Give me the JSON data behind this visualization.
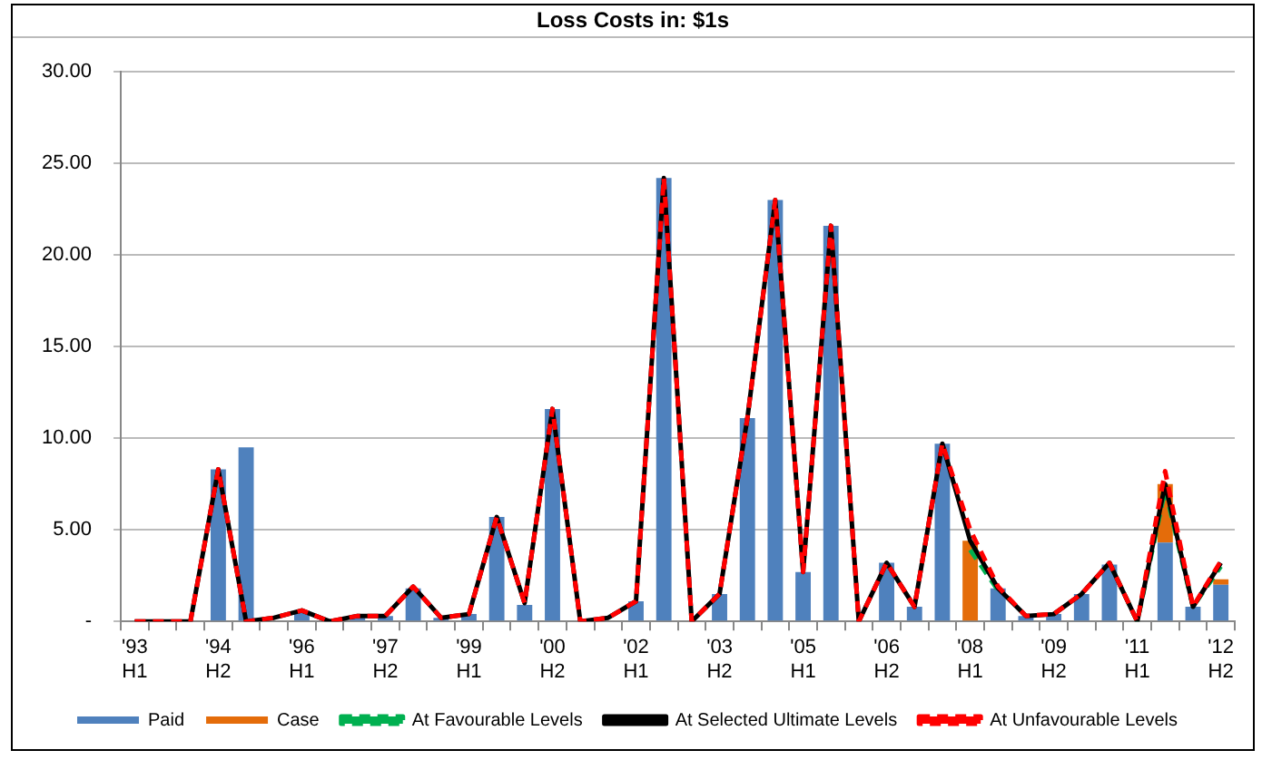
{
  "chart_data": {
    "type": "bar",
    "title": "Loss Costs in: $1s",
    "stacked": true,
    "grid": "y",
    "legend": "bottom",
    "marker": "none",
    "categories": [
      "'93 H1",
      null,
      null,
      "'94 H2",
      null,
      null,
      "'96 H1",
      null,
      null,
      "'97 H2",
      null,
      null,
      "'99 H1",
      null,
      null,
      "'00 H2",
      null,
      null,
      "'02 H1",
      null,
      null,
      "'03 H2",
      null,
      null,
      "'05 H1",
      null,
      null,
      "'06 H2",
      null,
      null,
      "'08 H1",
      null,
      null,
      "'09 H2",
      null,
      null,
      "'11 H1",
      null,
      null,
      "'12 H2"
    ],
    "ylim": [
      0,
      30
    ],
    "yticks": [
      {
        "value": 0,
        "label": "-"
      },
      {
        "value": 5,
        "label": "5.00"
      },
      {
        "value": 10,
        "label": "10.00"
      },
      {
        "value": 15,
        "label": "15.00"
      },
      {
        "value": 20,
        "label": "20.00"
      },
      {
        "value": 25,
        "label": "25.00"
      },
      {
        "value": 30,
        "label": "30.00"
      }
    ],
    "series": [
      {
        "name": "Paid",
        "color": "#4f81bd",
        "values": [
          0,
          0,
          0,
          8.3,
          9.5,
          null,
          0.6,
          0,
          0.2,
          0.3,
          1.8,
          0.2,
          0.4,
          5.7,
          0.9,
          11.6,
          0,
          null,
          1.1,
          24.2,
          0,
          1.5,
          11.1,
          23,
          2.7,
          21.6,
          0,
          3.2,
          0.8,
          9.7,
          0,
          1.8,
          0.3,
          0.4,
          1.5,
          3.1,
          0,
          4.3,
          0.8,
          2.0
        ]
      },
      {
        "name": "Case",
        "color": "#e46c0a",
        "values": [
          0,
          0,
          0,
          0,
          0,
          0,
          0,
          0,
          0,
          0,
          0,
          0,
          0,
          0,
          0,
          0,
          0,
          0,
          0,
          0,
          0,
          0,
          0,
          0,
          0,
          0,
          0,
          0,
          0,
          0,
          4.4,
          0,
          0,
          0,
          0,
          0,
          0,
          3.2,
          0,
          0.3
        ]
      },
      {
        "name": "At Favourable Levels",
        "type": "line",
        "line_style": "dashed",
        "color": "#00b050",
        "values": [
          null,
          null,
          null,
          null,
          null,
          null,
          null,
          null,
          null,
          null,
          null,
          null,
          null,
          null,
          null,
          null,
          null,
          null,
          null,
          null,
          null,
          null,
          null,
          null,
          null,
          null,
          null,
          null,
          null,
          null,
          3.9,
          1.7,
          null,
          null,
          null,
          3.2,
          0,
          7.2,
          0.8,
          3.0
        ]
      },
      {
        "name": "At Selected Ultimate Levels",
        "type": "line",
        "line_style": "solid",
        "color": "#000000",
        "values": [
          0,
          0,
          0,
          8.3,
          0,
          0.2,
          0.6,
          0,
          0.3,
          0.3,
          1.9,
          0.2,
          0.4,
          5.7,
          1.0,
          11.6,
          0,
          0.2,
          1.1,
          24.2,
          0,
          1.5,
          11.1,
          23,
          2.7,
          21.6,
          0,
          3.2,
          0.8,
          9.7,
          4.4,
          1.8,
          0.3,
          0.4,
          1.5,
          3.2,
          0,
          7.5,
          0.8,
          3.2
        ]
      },
      {
        "name": "At Unfavourable Levels",
        "type": "line",
        "line_style": "dashed",
        "color": "#ff0000",
        "values": [
          0,
          0,
          0,
          8.3,
          0,
          0.2,
          0.6,
          0,
          0.3,
          0.3,
          1.9,
          0.2,
          0.4,
          5.7,
          1.0,
          11.6,
          0,
          0.2,
          1.1,
          24.2,
          0,
          1.5,
          11.1,
          23,
          2.7,
          21.6,
          0,
          3.2,
          0.8,
          9.7,
          5.0,
          1.9,
          0.3,
          0.4,
          1.5,
          3.2,
          0,
          8.2,
          0.8,
          3.3
        ]
      }
    ]
  }
}
